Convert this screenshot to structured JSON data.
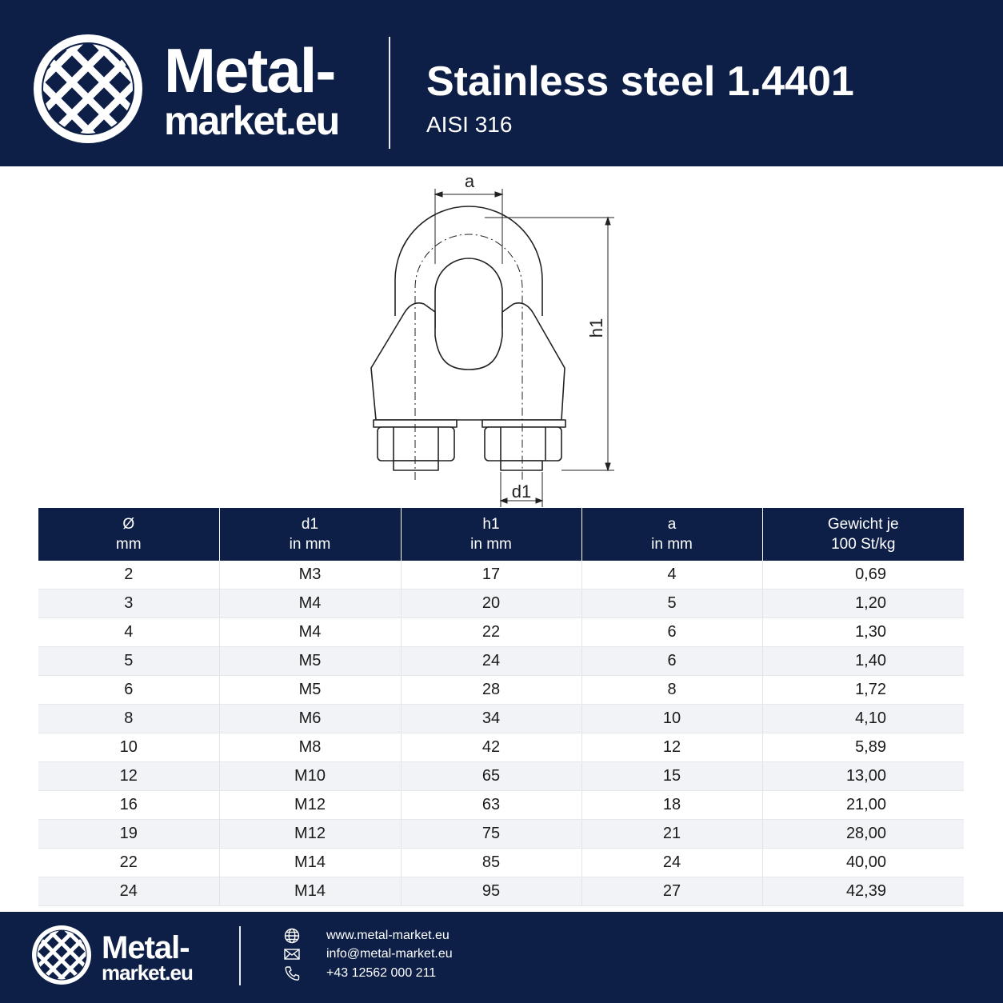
{
  "brand": {
    "line1": "Metal-",
    "line2": "market.eu"
  },
  "product": {
    "title": "Stainless steel 1.4401",
    "subtitle": "AISI 316"
  },
  "diagram_labels": {
    "a": "a",
    "h1": "h1",
    "d1": "d1"
  },
  "table": {
    "headers": [
      {
        "top": "Ø",
        "bottom": "mm"
      },
      {
        "top": "d1",
        "bottom": "in mm"
      },
      {
        "top": "h1",
        "bottom": "in mm"
      },
      {
        "top": "a",
        "bottom": "in mm"
      },
      {
        "top": "Gewicht je",
        "bottom": "100 St/kg"
      }
    ],
    "rows": [
      [
        "2",
        "M3",
        "17",
        "4",
        "0,69"
      ],
      [
        "3",
        "M4",
        "20",
        "5",
        "1,20"
      ],
      [
        "4",
        "M4",
        "22",
        "6",
        "1,30"
      ],
      [
        "5",
        "M5",
        "24",
        "6",
        "1,40"
      ],
      [
        "6",
        "M5",
        "28",
        "8",
        "1,72"
      ],
      [
        "8",
        "M6",
        "34",
        "10",
        "4,10"
      ],
      [
        "10",
        "M8",
        "42",
        "12",
        "5,89"
      ],
      [
        "12",
        "M10",
        "65",
        "15",
        "13,00"
      ],
      [
        "16",
        "M12",
        "63",
        "18",
        "21,00"
      ],
      [
        "19",
        "M12",
        "75",
        "21",
        "28,00"
      ],
      [
        "22",
        "M14",
        "85",
        "24",
        "40,00"
      ],
      [
        "24",
        "M14",
        "95",
        "27",
        "42,39"
      ]
    ]
  },
  "footer": {
    "website": "www.metal-market.eu",
    "email": "info@metal-market.eu",
    "phone": "+43 12562 000 211"
  },
  "icons": {
    "logo": "lattice-logo-icon",
    "web": "globe-icon",
    "mail": "envelope-icon",
    "phone": "phone-icon"
  },
  "colors": {
    "navy": "#0d1f47",
    "row_alt": "#f1f3f7"
  }
}
